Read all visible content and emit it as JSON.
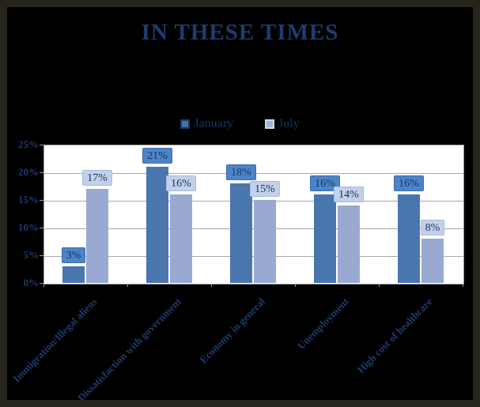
{
  "window": {
    "background_color": "#000000",
    "border_color": "#26241b"
  },
  "chart_data": {
    "type": "bar",
    "title": "IN THESE TIMES",
    "title_color": "#1f3c6b",
    "categories": [
      "Immigration/Illegal aliens",
      "Dissatisfaction with government",
      "Economy in general",
      "Unemployment",
      "High cost of healthcare"
    ],
    "series": [
      {
        "name": "January",
        "values": [
          3,
          21,
          18,
          16,
          16
        ],
        "bar_color": "#4a76ae",
        "label_bg": "#4d84c8",
        "label_border": "#3a6cb0",
        "swatch_fill": "#4272a8",
        "swatch_border": "#1b3a5f"
      },
      {
        "name": "July",
        "values": [
          17,
          16,
          15,
          14,
          8
        ],
        "bar_color": "#99a9d1",
        "label_bg": "#c3d0ea",
        "label_border": "#a8bcdc",
        "swatch_fill": "#a3b3dc",
        "swatch_border": "#d5d9e2"
      }
    ],
    "value_suffix": "%",
    "ylim": [
      0,
      25
    ],
    "ytick_step": 5,
    "ytick_labels": [
      "0%",
      "5%",
      "10%",
      "15%",
      "20%",
      "25%"
    ],
    "grid": true,
    "legend_position": "top-center",
    "colors": {
      "axis_text": "#1f3c6b",
      "value_text": "#17365d",
      "gridline": "#a9a9a9",
      "plot_border": "#9b9b9b",
      "plot_bg": "#ffffff"
    }
  }
}
